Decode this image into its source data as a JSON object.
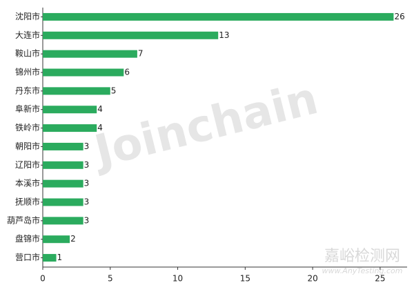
{
  "chart_data": {
    "type": "hbar",
    "categories": [
      "沈阳市",
      "大连市",
      "鞍山市",
      "锦州市",
      "丹东市",
      "阜新市",
      "铁岭市",
      "朝阳市",
      "辽阳市",
      "本溪市",
      "抚顺市",
      "葫芦岛市",
      "盘锦市",
      "营口市"
    ],
    "values": [
      26,
      13,
      7,
      6,
      5,
      4,
      4,
      3,
      3,
      3,
      3,
      3,
      2,
      1
    ],
    "color": "#2bab5e",
    "xlim": [
      0,
      27
    ],
    "xticks": [
      0,
      5,
      10,
      15,
      20,
      25
    ],
    "grid": false,
    "watermarks": [
      "Joinchain",
      "嘉峪检测网",
      "www.AnyTesting.com"
    ]
  }
}
